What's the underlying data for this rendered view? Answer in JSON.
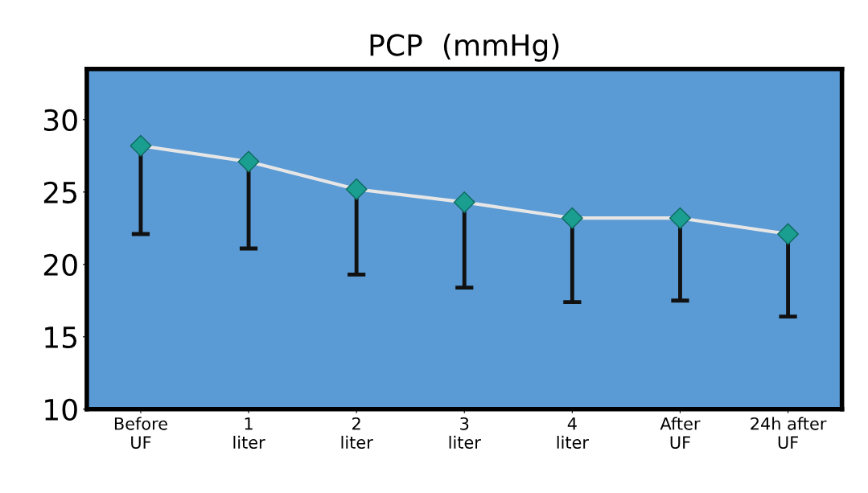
{
  "chart_data": {
    "type": "line",
    "title": "PCP  (mmHg)",
    "categories": [
      "Before\nUF",
      "1\nliter",
      "2\nliter",
      "3\nliter",
      "4\nliter",
      "After\nUF",
      "24h after\nUF"
    ],
    "series": [
      {
        "color": "#e6e6e6",
        "values": [
          28.2,
          27.1,
          25.2,
          24.3,
          23.2,
          23.2,
          22.1
        ],
        "errors": [
          [
            22.1,
            28.2
          ],
          [
            21.1,
            27.1
          ],
          [
            19.3,
            25.2
          ],
          [
            18.4,
            24.3
          ],
          [
            17.4,
            23.2
          ],
          [
            17.5,
            23.2
          ],
          [
            16.4,
            22.1
          ]
        ]
      }
    ],
    "ylim": [
      10,
      33.5
    ],
    "yticks": [
      10,
      15,
      20,
      25,
      30
    ],
    "grid": false,
    "legend": false,
    "marker": "diamond",
    "line_style": "solid"
  }
}
